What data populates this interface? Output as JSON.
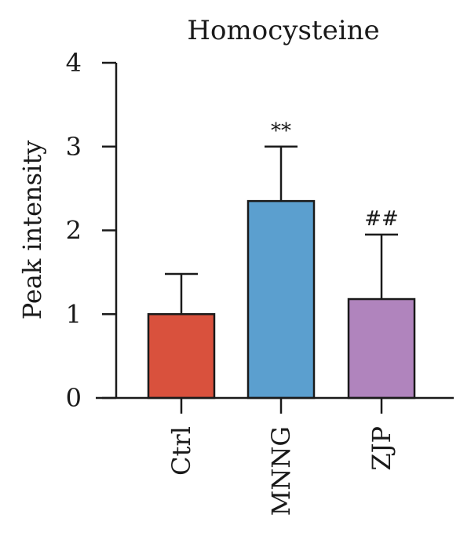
{
  "chart_data": {
    "type": "bar",
    "title": "Homocysteine",
    "ylabel": "Peak intensity",
    "xlabel": "",
    "ylim": [
      0,
      4
    ],
    "yticks": [
      "0",
      "1",
      "2",
      "3",
      "4"
    ],
    "categories": [
      "Ctrl",
      "MNNG",
      "ZJP"
    ],
    "values": [
      1.0,
      2.35,
      1.18
    ],
    "error_upper": [
      1.48,
      3.0,
      1.95
    ],
    "colors": [
      "#d9513d",
      "#5b9fcf",
      "#b084bd"
    ],
    "annotations": [
      "",
      "**",
      "##"
    ],
    "grid": false,
    "legend": "none"
  }
}
